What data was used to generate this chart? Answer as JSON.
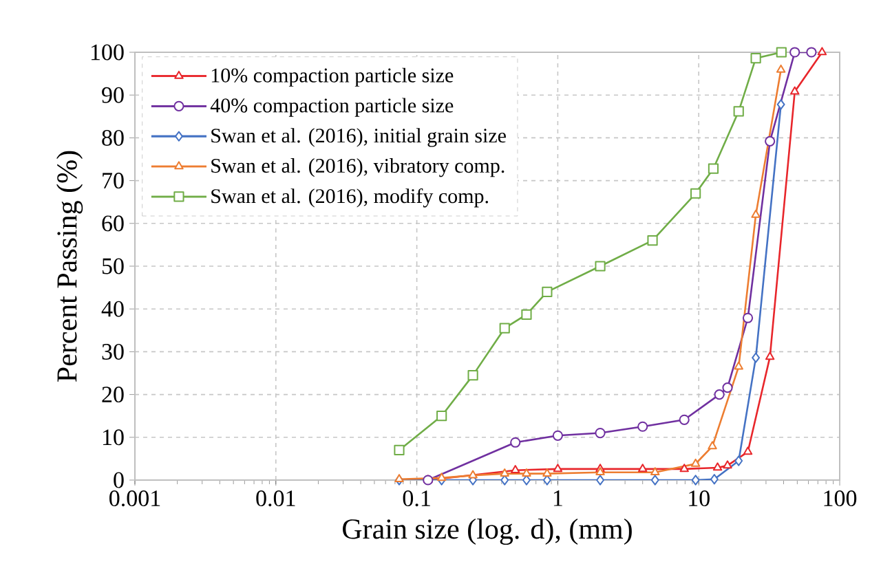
{
  "chart_data": {
    "type": "line",
    "xlabel": "Grain size (log. d), (mm)",
    "ylabel": "Percent Passing (%)",
    "log": "x",
    "xlim": [
      0.001,
      100
    ],
    "ylim": [
      0,
      100
    ],
    "xticks": [
      0.001,
      0.01,
      0.1,
      1,
      10,
      100
    ],
    "yticks": [
      0,
      10,
      20,
      30,
      40,
      50,
      60,
      70,
      80,
      90,
      100
    ],
    "grid": true,
    "legend": "top left",
    "line_style": "solid",
    "series": [
      {
        "name": "10% compaction particle size",
        "color": "#e8262b",
        "marker": "triangle",
        "x": [
          0.12,
          0.5,
          1.0,
          2.0,
          4.0,
          7.9,
          13.6,
          16,
          22.3,
          32,
          48,
          75
        ],
        "values": [
          0,
          2.3,
          2.6,
          2.6,
          2.6,
          2.6,
          2.9,
          3.4,
          6.6,
          28.8,
          90.8,
          100
        ]
      },
      {
        "name": "40% compaction particle size",
        "color": "#7030a0",
        "marker": "circle",
        "x": [
          0.12,
          0.5,
          1.0,
          2.0,
          4.0,
          7.9,
          14,
          16,
          22.3,
          32,
          48,
          63
        ],
        "values": [
          0,
          8.8,
          10.4,
          11,
          12.5,
          14.1,
          20,
          21.6,
          37.9,
          79.2,
          100,
          100
        ]
      },
      {
        "name": "Swan et al. (2016), initial grain size",
        "color": "#4472c4",
        "marker": "diamond",
        "x": [
          0.075,
          0.15,
          0.25,
          0.42,
          0.6,
          0.84,
          2.0,
          4.9,
          9.5,
          12.9,
          19.2,
          25.4,
          38.3
        ],
        "values": [
          0,
          0,
          0,
          0,
          0,
          0,
          0,
          0,
          0,
          0.2,
          4.5,
          28.6,
          87.8
        ]
      },
      {
        "name": "Swan et al. (2016), vibratory comp.",
        "color": "#ed7d31",
        "marker": "triangle",
        "x": [
          0.075,
          0.15,
          0.25,
          0.42,
          0.6,
          0.84,
          2.0,
          4.9,
          9.5,
          12.5,
          19.2,
          25.4,
          38.3
        ],
        "values": [
          0.2,
          0.5,
          1.1,
          1.5,
          1.5,
          1.5,
          1.8,
          1.8,
          3.8,
          7.9,
          26.5,
          62,
          95.9
        ]
      },
      {
        "name": "Swan et al. (2016), modify comp.",
        "color": "#70ad47",
        "marker": "square",
        "x": [
          0.075,
          0.15,
          0.25,
          0.42,
          0.6,
          0.84,
          2.0,
          4.7,
          9.5,
          12.7,
          19.2,
          25.4,
          38.6
        ],
        "values": [
          7,
          15,
          24.5,
          35.5,
          38.7,
          44,
          50,
          56,
          67,
          72.8,
          86.2,
          98.6,
          100
        ]
      }
    ]
  }
}
